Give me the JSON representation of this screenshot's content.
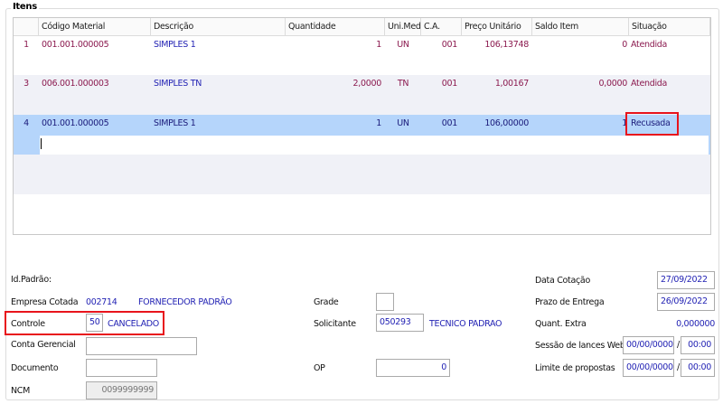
{
  "section_title": "Itens",
  "table": {
    "columns": [
      "",
      "Código Material",
      "Descrição",
      "Quantidade",
      "Uni.Med.",
      "C.A.",
      "Preço Unitário",
      "Saldo Item",
      "Situação"
    ],
    "rows": [
      {
        "num": "1",
        "codigo": "001.001.000005",
        "descricao": "SIMPLES 1",
        "quantidade": "1",
        "unidade": "UN",
        "ca": "001",
        "preco": "106,13748",
        "saldo": "0",
        "situacao": "Atendida"
      },
      {
        "num": "3",
        "codigo": "006.001.000003",
        "descricao": "SIMPLES TN",
        "quantidade": "2,0000",
        "unidade": "TN",
        "ca": "001",
        "preco": "1,00167",
        "saldo": "0,0000",
        "situacao": "Atendida"
      },
      {
        "num": "4",
        "codigo": "001.001.000005",
        "descricao": "SIMPLES 1",
        "quantidade": "1",
        "unidade": "UN",
        "ca": "001",
        "preco": "106,00000",
        "saldo": "1",
        "situacao": "Recusada"
      }
    ],
    "selected_row": 2
  },
  "form": {
    "id_padrao_label": "Id.Padrão:",
    "empresa_label": "Empresa Cotada",
    "empresa_code": "002714",
    "empresa_name": "FORNECEDOR PADRÃO",
    "controle_label": "Controle",
    "controle_value": "50",
    "controle_status": "CANCELADO",
    "conta_label": "Conta Gerencial",
    "conta_value": "",
    "documento_label": "Documento",
    "documento_value": "",
    "ncm_label": "NCM",
    "ncm_value": "0099999999",
    "grade_label": "Grade",
    "grade_value": "",
    "solicitante_label": "Solicitante",
    "solicitante_code": "050293",
    "solicitante_name": "TECNICO PADRAO",
    "op_label": "OP",
    "op_value": "0",
    "data_cotacao_label": "Data Cotação",
    "data_cotacao_value": "27/09/2022",
    "prazo_label": "Prazo de Entrega",
    "prazo_value": "26/09/2022",
    "quant_extra_label": "Quant. Extra",
    "quant_extra_value": "0,000000",
    "sessao_label": "Sessão de lances Web",
    "sessao_date": "00/00/0000",
    "sessao_time": "00:00",
    "limite_label": "Limite de propostas",
    "limite_date": "00/00/0000",
    "limite_time": "00:00",
    "separator": "/"
  },
  "colors": {
    "highlight": "#e8141c",
    "selected_row": "#b5d5fb",
    "alt_row": "#f0f1f7"
  }
}
